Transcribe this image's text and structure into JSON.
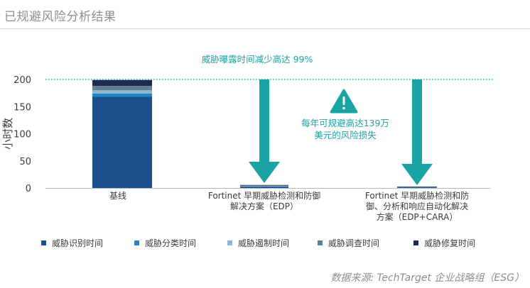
{
  "page": {
    "title": "已规避风险分析结果",
    "source": "数据来源: TechTarget 企业战略组（ESG）"
  },
  "colors": {
    "teal": "#1aa3a3",
    "axis": "#b5b9bd",
    "text": "#3c3c3c",
    "muted": "#8a8f94"
  },
  "chart_data": {
    "type": "bar",
    "stacked": true,
    "title": "",
    "ylabel": "小时数",
    "xlabel": "",
    "ylim": [
      0,
      200
    ],
    "yticks": [
      0,
      50,
      100,
      150,
      200
    ],
    "grid": false,
    "legend_position": "bottom",
    "categories": [
      "基线",
      "Fortinet 早期威胁检测和防御解决方案（EDP）",
      "Fortinet 早期威胁检测和防御、分析和响应自动化解决方案（EDP+CARA）"
    ],
    "category_lines": [
      [
        "基线"
      ],
      [
        "Fortinet 早期威胁检测和防御",
        "解决方案（EDP）"
      ],
      [
        "Fortinet 早期威胁检测和防",
        "御、分析和响应自动化解决",
        "方案（EDP+CARA）"
      ]
    ],
    "series": [
      {
        "name": "威胁识别时间",
        "color": "#1b4f8e",
        "values": [
          168,
          2.5,
          1.2
        ]
      },
      {
        "name": "威胁分类时间",
        "color": "#1f87c2",
        "values": [
          6,
          0.5,
          0.3
        ]
      },
      {
        "name": "威胁遏制时间",
        "color": "#8fb4d4",
        "values": [
          6,
          0.5,
          0.3
        ]
      },
      {
        "name": "威胁调查时间",
        "color": "#5f7f95",
        "values": [
          8,
          1,
          0.4
        ]
      },
      {
        "name": "威胁修复时间",
        "color": "#1c2a4f",
        "values": [
          11,
          1,
          0.4
        ]
      }
    ],
    "reference_line": {
      "value": 200,
      "label": "威胁曝露时间减少高达 99%"
    },
    "annotation": {
      "lines": [
        "每年可规避高达139万",
        "美元的风险损失"
      ],
      "icon": "warning-icon"
    }
  }
}
